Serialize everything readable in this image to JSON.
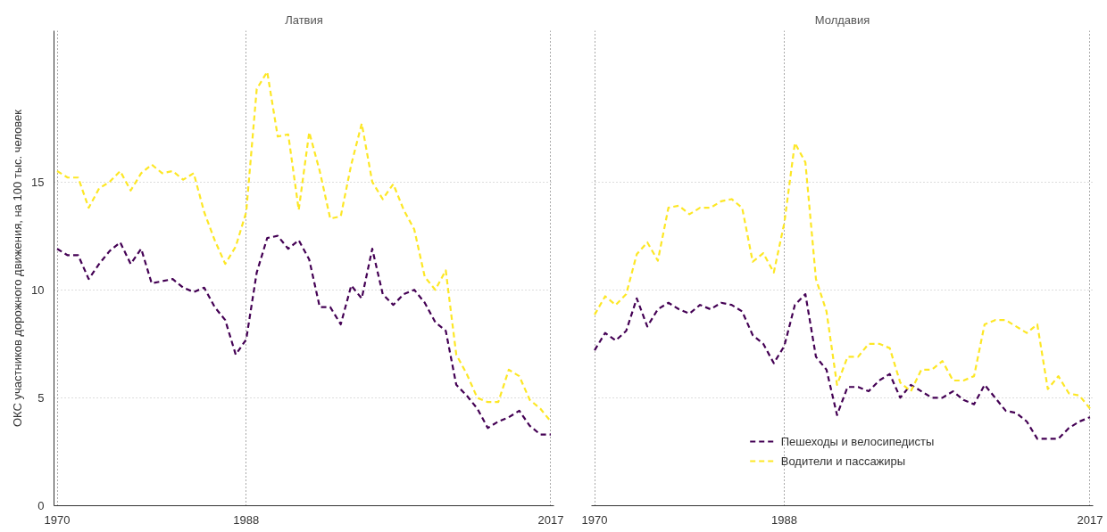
{
  "chart_data": [
    {
      "type": "line",
      "title": "Латвия",
      "ylabel": "ОКС участников дорожного движения, на 100 тыс. человек",
      "x": [
        1970,
        1971,
        1972,
        1973,
        1974,
        1975,
        1976,
        1977,
        1978,
        1979,
        1980,
        1981,
        1982,
        1983,
        1984,
        1985,
        1986,
        1987,
        1988,
        1989,
        1990,
        1991,
        1992,
        1993,
        1994,
        1995,
        1996,
        1997,
        1998,
        1999,
        2000,
        2001,
        2002,
        2003,
        2004,
        2005,
        2006,
        2007,
        2008,
        2009,
        2010,
        2011,
        2012,
        2013,
        2014,
        2015,
        2016,
        2017
      ],
      "series": [
        {
          "color": "#440154",
          "values": [
            11.9,
            11.6,
            11.6,
            10.5,
            11.2,
            11.8,
            12.2,
            11.2,
            11.9,
            10.3,
            10.4,
            10.5,
            10.1,
            9.9,
            10.1,
            9.2,
            8.6,
            7.0,
            7.7,
            10.8,
            12.4,
            12.5,
            11.9,
            12.3,
            11.4,
            9.2,
            9.2,
            8.4,
            10.2,
            9.6,
            11.9,
            9.8,
            9.3,
            9.8,
            10.0,
            9.4,
            8.5,
            8.1,
            5.6,
            5.1,
            4.5,
            3.6,
            3.9,
            4.1,
            4.4,
            3.7,
            3.3,
            3.3
          ]
        },
        {
          "color": "#fde725",
          "values": [
            15.5,
            15.2,
            15.2,
            13.8,
            14.7,
            15.0,
            15.5,
            14.6,
            15.4,
            15.8,
            15.4,
            15.5,
            15.1,
            15.4,
            13.6,
            12.3,
            11.2,
            12.0,
            13.6,
            19.3,
            20.1,
            17.1,
            17.2,
            13.7,
            17.3,
            15.5,
            13.3,
            13.4,
            15.8,
            17.7,
            15.0,
            14.2,
            14.9,
            13.7,
            12.8,
            10.6,
            10.0,
            10.9,
            7.0,
            6.1,
            5.0,
            4.8,
            4.8,
            6.3,
            6.0,
            4.9,
            4.5,
            3.9
          ]
        }
      ],
      "xlim": [
        1969.7,
        2017.3
      ],
      "ylim": [
        0,
        22
      ],
      "xticks": [
        1970,
        1988,
        2017
      ],
      "yticks": [
        0,
        5,
        10,
        15
      ],
      "grid": true,
      "legend": false,
      "line_style": "dashed"
    },
    {
      "type": "line",
      "title": "Молдавия",
      "x": [
        1970,
        1971,
        1972,
        1973,
        1974,
        1975,
        1976,
        1977,
        1978,
        1979,
        1980,
        1981,
        1982,
        1983,
        1984,
        1985,
        1986,
        1987,
        1988,
        1989,
        1990,
        1991,
        1992,
        1993,
        1994,
        1995,
        1996,
        1997,
        1998,
        1999,
        2000,
        2001,
        2002,
        2003,
        2004,
        2005,
        2006,
        2007,
        2008,
        2009,
        2010,
        2011,
        2012,
        2013,
        2014,
        2015,
        2016,
        2017
      ],
      "series": [
        {
          "name": "Пешеходы и велосипедисты",
          "color": "#440154",
          "values": [
            7.2,
            8.0,
            7.65,
            8.1,
            9.6,
            8.3,
            9.1,
            9.4,
            9.1,
            8.9,
            9.3,
            9.1,
            9.4,
            9.3,
            9.0,
            7.9,
            7.5,
            6.6,
            7.4,
            9.3,
            9.8,
            6.9,
            6.3,
            4.2,
            5.5,
            5.5,
            5.3,
            5.8,
            6.1,
            5.0,
            5.6,
            5.3,
            5.0,
            5.0,
            5.3,
            4.9,
            4.7,
            5.6,
            5.0,
            4.4,
            4.3,
            3.9,
            3.1,
            3.1,
            3.1,
            3.6,
            3.9,
            4.1
          ]
        },
        {
          "name": "Водители и пассажиры",
          "color": "#fde725",
          "values": [
            8.85,
            9.7,
            9.3,
            9.8,
            11.65,
            12.2,
            11.35,
            13.8,
            13.9,
            13.5,
            13.8,
            13.8,
            14.1,
            14.2,
            13.8,
            11.3,
            11.7,
            10.8,
            13.1,
            16.8,
            15.9,
            10.5,
            9.0,
            5.6,
            6.9,
            6.9,
            7.5,
            7.5,
            7.3,
            5.7,
            5.3,
            6.3,
            6.3,
            6.7,
            5.8,
            5.8,
            6.0,
            8.4,
            8.6,
            8.6,
            8.3,
            8.0,
            8.4,
            5.4,
            6.0,
            5.2,
            5.1,
            4.5
          ]
        }
      ],
      "xlim": [
        1969.7,
        2017.3
      ],
      "ylim": [
        0,
        22
      ],
      "xticks": [
        1970,
        1988,
        2017
      ],
      "yticks": [
        0,
        5,
        10,
        15
      ],
      "grid": true,
      "legend": "bottom",
      "line_style": "dashed",
      "tick_labels": "x"
    }
  ]
}
